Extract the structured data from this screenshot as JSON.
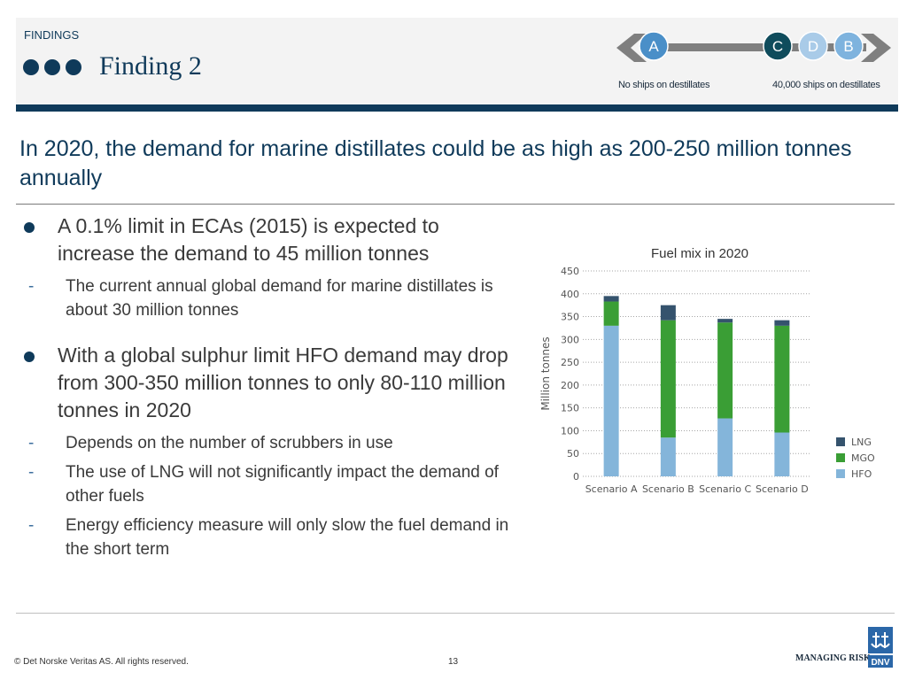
{
  "header": {
    "section": "FINDINGS",
    "title": "Finding 2"
  },
  "scenario_nav": {
    "markers": [
      {
        "letter": "A",
        "color": "#4a8fc8"
      },
      {
        "letter": "C",
        "color": "#0f4c5c"
      },
      {
        "letter": "D",
        "color": "#a9cbe8"
      },
      {
        "letter": "B",
        "color": "#7eb3de"
      }
    ],
    "left_caption": "No ships on destillates",
    "right_caption": "40,000 ships on destillates"
  },
  "headline": "In 2020, the demand for marine distillates could be as high as 200-250 million tonnes annually",
  "bullets": [
    {
      "text": "A 0.1% limit in ECAs (2015) is expected to increase the demand to 45 million tonnes",
      "subs": [
        "The current annual global demand for marine distillates is about 30 million tonnes"
      ]
    },
    {
      "text": "With a global sulphur limit HFO demand may drop from 300-350 million tonnes to only 80-110 million tonnes in 2020",
      "subs": [
        "Depends on the number of scrubbers in use",
        "The use of LNG will not significantly impact the demand of other fuels",
        "Energy efficiency measure will only slow the fuel demand in the short term"
      ]
    }
  ],
  "chart_data": {
    "type": "bar",
    "stacked": true,
    "title": "Fuel mix in 2020",
    "ylabel": "Million tonnes",
    "xlabel": "",
    "ylim": [
      0,
      450
    ],
    "yticks": [
      0,
      50,
      100,
      150,
      200,
      250,
      300,
      350,
      400,
      450
    ],
    "grid": "dotted horizontal",
    "legend_position": "right-bottom",
    "categories": [
      "Scenario A",
      "Scenario B",
      "Scenario C",
      "Scenario D"
    ],
    "series": [
      {
        "name": "HFO",
        "color": "#84b5da",
        "values": [
          330,
          85,
          127,
          96
        ]
      },
      {
        "name": "MGO",
        "color": "#3a9e35",
        "values": [
          53,
          257,
          210,
          234
        ]
      },
      {
        "name": "LNG",
        "color": "#35536d",
        "values": [
          12,
          33,
          8,
          12
        ]
      }
    ]
  },
  "footer": {
    "copyright": "© Det Norske Veritas AS. All rights reserved.",
    "page": "13",
    "tagline": "MANAGING RISK",
    "logo_text": "DNV"
  }
}
